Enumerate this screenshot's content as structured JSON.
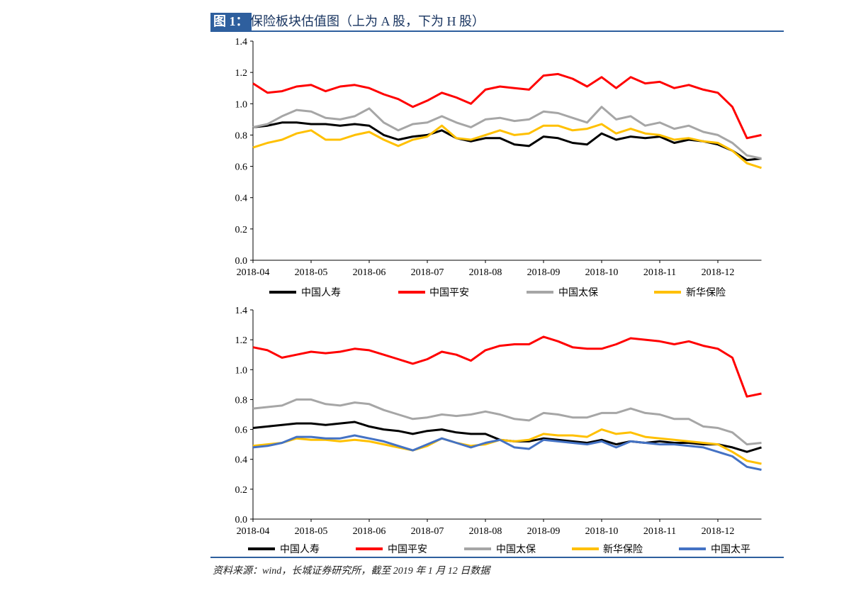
{
  "header": {
    "figure_label": "图 1：",
    "title": "保险板块估值图（上为 A 股，下为 H 股）"
  },
  "footer": {
    "source": "资料来源：wind，长城证券研究所，截至 2019 年 1 月 12 日数据"
  },
  "chart_data": [
    {
      "type": "line",
      "title": "A股",
      "xlabel": "",
      "ylabel": "",
      "ylim": [
        0,
        1.4
      ],
      "yticks": [
        "0.0",
        "0.2",
        "0.4",
        "0.6",
        "0.8",
        "1.0",
        "1.2",
        "1.4"
      ],
      "xticks": [
        "2018-04",
        "2018-05",
        "2018-06",
        "2018-07",
        "2018-08",
        "2018-09",
        "2018-10",
        "2018-11",
        "2018-12"
      ],
      "x_months_since_2018_04": [
        0,
        0.25,
        0.5,
        0.75,
        1,
        1.25,
        1.5,
        1.75,
        2,
        2.25,
        2.5,
        2.75,
        3,
        3.25,
        3.5,
        3.75,
        4,
        4.25,
        4.5,
        4.75,
        5,
        5.25,
        5.5,
        5.75,
        6,
        6.25,
        6.5,
        6.75,
        7,
        7.25,
        7.5,
        7.75,
        8,
        8.25,
        8.5,
        8.75
      ],
      "legend": "bottom",
      "series": [
        {
          "name": "中国人寿",
          "color": "#000000",
          "values": [
            0.85,
            0.86,
            0.88,
            0.88,
            0.87,
            0.87,
            0.86,
            0.87,
            0.86,
            0.8,
            0.77,
            0.79,
            0.8,
            0.83,
            0.78,
            0.76,
            0.78,
            0.78,
            0.74,
            0.73,
            0.79,
            0.78,
            0.75,
            0.74,
            0.81,
            0.77,
            0.79,
            0.78,
            0.79,
            0.75,
            0.77,
            0.76,
            0.74,
            0.7,
            0.64,
            0.65
          ]
        },
        {
          "name": "中国平安",
          "color": "#ff0000",
          "values": [
            1.13,
            1.07,
            1.08,
            1.11,
            1.12,
            1.08,
            1.11,
            1.12,
            1.1,
            1.06,
            1.03,
            0.98,
            1.02,
            1.07,
            1.04,
            1.0,
            1.09,
            1.11,
            1.1,
            1.09,
            1.18,
            1.19,
            1.16,
            1.11,
            1.17,
            1.1,
            1.17,
            1.13,
            1.14,
            1.1,
            1.12,
            1.09,
            1.07,
            0.98,
            0.78,
            0.8
          ]
        },
        {
          "name": "中国太保",
          "color": "#a6a6a6",
          "values": [
            0.85,
            0.87,
            0.92,
            0.96,
            0.95,
            0.91,
            0.9,
            0.92,
            0.97,
            0.88,
            0.83,
            0.87,
            0.88,
            0.92,
            0.88,
            0.85,
            0.9,
            0.91,
            0.89,
            0.9,
            0.95,
            0.94,
            0.91,
            0.88,
            0.98,
            0.9,
            0.92,
            0.86,
            0.88,
            0.84,
            0.86,
            0.82,
            0.8,
            0.75,
            0.67,
            0.65
          ]
        },
        {
          "name": "新华保险",
          "color": "#ffc000",
          "values": [
            0.72,
            0.75,
            0.77,
            0.81,
            0.83,
            0.77,
            0.77,
            0.8,
            0.82,
            0.77,
            0.73,
            0.77,
            0.79,
            0.86,
            0.78,
            0.77,
            0.8,
            0.83,
            0.8,
            0.81,
            0.86,
            0.86,
            0.83,
            0.84,
            0.87,
            0.81,
            0.84,
            0.81,
            0.8,
            0.77,
            0.78,
            0.76,
            0.75,
            0.7,
            0.62,
            0.59
          ]
        }
      ]
    },
    {
      "type": "line",
      "title": "H股",
      "xlabel": "",
      "ylabel": "",
      "ylim": [
        0,
        1.4
      ],
      "yticks": [
        "0.0",
        "0.2",
        "0.4",
        "0.6",
        "0.8",
        "1.0",
        "1.2",
        "1.4"
      ],
      "xticks": [
        "2018-04",
        "2018-05",
        "2018-06",
        "2018-07",
        "2018-08",
        "2018-09",
        "2018-10",
        "2018-11",
        "2018-12"
      ],
      "x_months_since_2018_04": [
        0,
        0.25,
        0.5,
        0.75,
        1,
        1.25,
        1.5,
        1.75,
        2,
        2.25,
        2.5,
        2.75,
        3,
        3.25,
        3.5,
        3.75,
        4,
        4.25,
        4.5,
        4.75,
        5,
        5.25,
        5.5,
        5.75,
        6,
        6.25,
        6.5,
        6.75,
        7,
        7.25,
        7.5,
        7.75,
        8,
        8.25,
        8.5,
        8.75
      ],
      "legend": "bottom",
      "series": [
        {
          "name": "中国人寿",
          "color": "#000000",
          "values": [
            0.61,
            0.62,
            0.63,
            0.64,
            0.64,
            0.63,
            0.64,
            0.65,
            0.62,
            0.6,
            0.59,
            0.57,
            0.59,
            0.6,
            0.58,
            0.57,
            0.57,
            0.53,
            0.52,
            0.52,
            0.54,
            0.53,
            0.52,
            0.51,
            0.53,
            0.5,
            0.52,
            0.51,
            0.52,
            0.51,
            0.51,
            0.5,
            0.5,
            0.48,
            0.45,
            0.48
          ]
        },
        {
          "name": "中国平安",
          "color": "#ff0000",
          "values": [
            1.15,
            1.13,
            1.08,
            1.1,
            1.12,
            1.11,
            1.12,
            1.14,
            1.13,
            1.1,
            1.07,
            1.04,
            1.07,
            1.12,
            1.1,
            1.06,
            1.13,
            1.16,
            1.17,
            1.17,
            1.22,
            1.19,
            1.15,
            1.14,
            1.14,
            1.17,
            1.21,
            1.2,
            1.19,
            1.17,
            1.19,
            1.16,
            1.14,
            1.08,
            0.82,
            0.84
          ]
        },
        {
          "name": "中国太保",
          "color": "#a6a6a6",
          "values": [
            0.74,
            0.75,
            0.76,
            0.8,
            0.8,
            0.77,
            0.76,
            0.78,
            0.77,
            0.73,
            0.7,
            0.67,
            0.68,
            0.7,
            0.69,
            0.7,
            0.72,
            0.7,
            0.67,
            0.66,
            0.71,
            0.7,
            0.68,
            0.68,
            0.71,
            0.71,
            0.74,
            0.71,
            0.7,
            0.67,
            0.67,
            0.62,
            0.61,
            0.58,
            0.5,
            0.51
          ]
        },
        {
          "name": "新华保险",
          "color": "#ffc000",
          "values": [
            0.49,
            0.5,
            0.51,
            0.54,
            0.53,
            0.53,
            0.52,
            0.53,
            0.52,
            0.5,
            0.48,
            0.46,
            0.49,
            0.54,
            0.51,
            0.49,
            0.5,
            0.53,
            0.52,
            0.53,
            0.57,
            0.56,
            0.56,
            0.55,
            0.6,
            0.57,
            0.58,
            0.55,
            0.54,
            0.53,
            0.52,
            0.51,
            0.5,
            0.45,
            0.39,
            0.37
          ]
        },
        {
          "name": "中国太平",
          "color": "#4472c4",
          "values": [
            0.48,
            0.49,
            0.51,
            0.55,
            0.55,
            0.54,
            0.54,
            0.56,
            0.54,
            0.52,
            0.49,
            0.46,
            0.5,
            0.54,
            0.51,
            0.48,
            0.51,
            0.53,
            0.48,
            0.47,
            0.53,
            0.52,
            0.51,
            0.5,
            0.52,
            0.48,
            0.52,
            0.51,
            0.5,
            0.5,
            0.49,
            0.48,
            0.45,
            0.42,
            0.35,
            0.33
          ]
        }
      ]
    }
  ]
}
